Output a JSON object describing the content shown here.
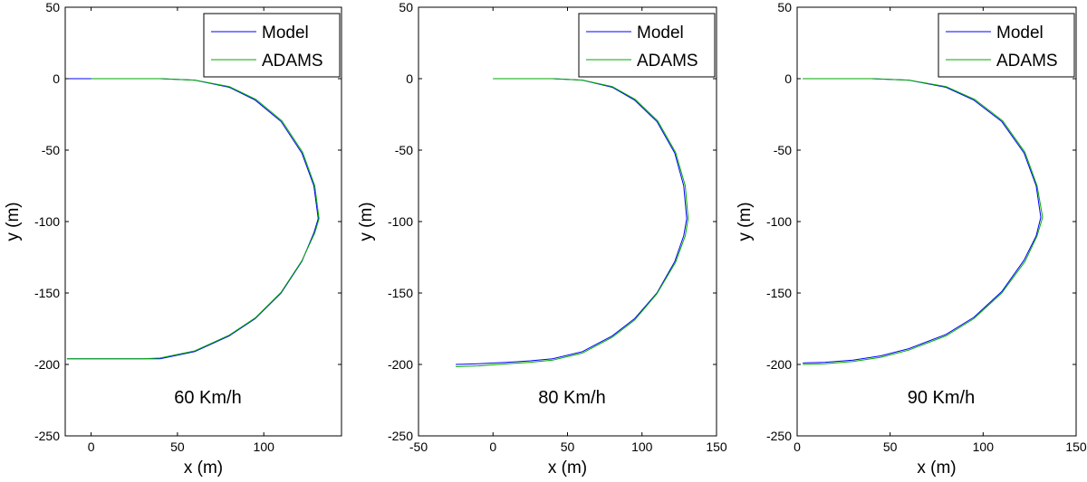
{
  "chart_data": [
    {
      "type": "line",
      "title": "",
      "annotation": "60 Km/h",
      "xlabel": "x (m)",
      "ylabel": "y (m)",
      "xlim": [
        -15,
        145
      ],
      "ylim": [
        -250,
        50
      ],
      "xticks": [
        0,
        50,
        100
      ],
      "yticks": [
        50,
        0,
        -50,
        -100,
        -150,
        -200,
        -250
      ],
      "legend": "top-right",
      "series": [
        {
          "name": "Model",
          "color": "#0000ff",
          "x": [
            -14,
            0,
            15,
            30,
            40,
            60,
            80,
            95,
            110,
            122,
            129,
            131.5,
            129,
            122,
            110,
            95,
            80,
            60,
            40,
            20,
            0,
            -14
          ],
          "y": [
            -196,
            -196,
            -196,
            -196,
            -196,
            -191,
            -180,
            -168,
            -150,
            -128,
            -108,
            -98,
            -75,
            -52,
            -30,
            -15,
            -6,
            -1,
            0,
            0,
            0,
            0
          ]
        },
        {
          "name": "ADAMS",
          "color": "#00aa00",
          "x": [
            -14,
            0,
            15,
            30,
            40,
            60,
            80,
            95,
            110,
            122,
            129.5,
            132,
            129.5,
            122.5,
            110.5,
            95.5,
            80,
            60,
            40,
            20,
            0
          ],
          "y": [
            -196,
            -196,
            -196,
            -196,
            -195.5,
            -190.5,
            -179.5,
            -167.5,
            -149.5,
            -127.5,
            -108,
            -98,
            -75,
            -51.5,
            -29.5,
            -14.5,
            -5.5,
            -1,
            0,
            0,
            0
          ]
        }
      ]
    },
    {
      "type": "line",
      "title": "",
      "annotation": "80 Km/h",
      "xlabel": "x (m)",
      "ylabel": "y (m)",
      "xlim": [
        -50,
        150
      ],
      "ylim": [
        -250,
        50
      ],
      "xticks": [
        -50,
        0,
        50,
        100,
        150
      ],
      "yticks": [
        50,
        0,
        -50,
        -100,
        -150,
        -200,
        -250
      ],
      "legend": "top-right",
      "series": [
        {
          "name": "Model",
          "color": "#0000ff",
          "x": [
            -25,
            -10,
            10,
            25,
            40,
            60,
            80,
            95,
            110,
            122,
            128,
            130,
            128,
            122,
            110,
            95,
            80,
            60,
            40,
            20,
            0
          ],
          "y": [
            -200,
            -199.5,
            -198.5,
            -197.5,
            -196,
            -191,
            -180,
            -168,
            -150,
            -128,
            -110,
            -98,
            -75,
            -52,
            -30,
            -15,
            -6,
            -1,
            0,
            0,
            0
          ]
        },
        {
          "name": "ADAMS",
          "color": "#00aa00",
          "x": [
            -25,
            -10,
            10,
            25,
            40,
            60,
            80,
            95,
            110,
            122.5,
            129,
            131,
            129,
            122.5,
            110.5,
            95.5,
            80,
            60,
            40,
            20,
            0
          ],
          "y": [
            -201.5,
            -201,
            -199.5,
            -198.5,
            -197,
            -192,
            -181,
            -169,
            -150.5,
            -128.5,
            -110,
            -98,
            -75,
            -51.5,
            -29.5,
            -14.5,
            -5.5,
            -1,
            0,
            0,
            0
          ]
        }
      ]
    },
    {
      "type": "line",
      "title": "",
      "annotation": "90 Km/h",
      "xlabel": "x (m)",
      "ylabel": "y (m)",
      "xlim": [
        0,
        150
      ],
      "ylim": [
        -250,
        50
      ],
      "xticks": [
        0,
        50,
        100,
        150
      ],
      "yticks": [
        50,
        0,
        -50,
        -100,
        -150,
        -200,
        -250
      ],
      "legend": "top-right",
      "series": [
        {
          "name": "Model",
          "color": "#0000ff",
          "x": [
            3,
            15,
            30,
            45,
            60,
            80,
            95,
            110,
            122,
            128.5,
            131,
            128.5,
            122,
            110,
            95,
            80,
            60,
            40,
            20,
            3
          ],
          "y": [
            -199,
            -198.5,
            -197,
            -194,
            -189,
            -179,
            -167,
            -149,
            -127,
            -110,
            -97,
            -75,
            -52,
            -30,
            -15,
            -6,
            -1,
            0,
            0,
            0
          ]
        },
        {
          "name": "ADAMS",
          "color": "#00aa00",
          "x": [
            3,
            15,
            30,
            45,
            60,
            80,
            95,
            110,
            122.5,
            129,
            132,
            129,
            122.5,
            110.5,
            95.5,
            80,
            60,
            40,
            20,
            3
          ],
          "y": [
            -200,
            -199.5,
            -198,
            -195,
            -190,
            -180,
            -168,
            -150,
            -128,
            -110,
            -97,
            -75,
            -51.5,
            -29.5,
            -14.5,
            -5.5,
            -1,
            0,
            0,
            0
          ]
        }
      ]
    }
  ]
}
